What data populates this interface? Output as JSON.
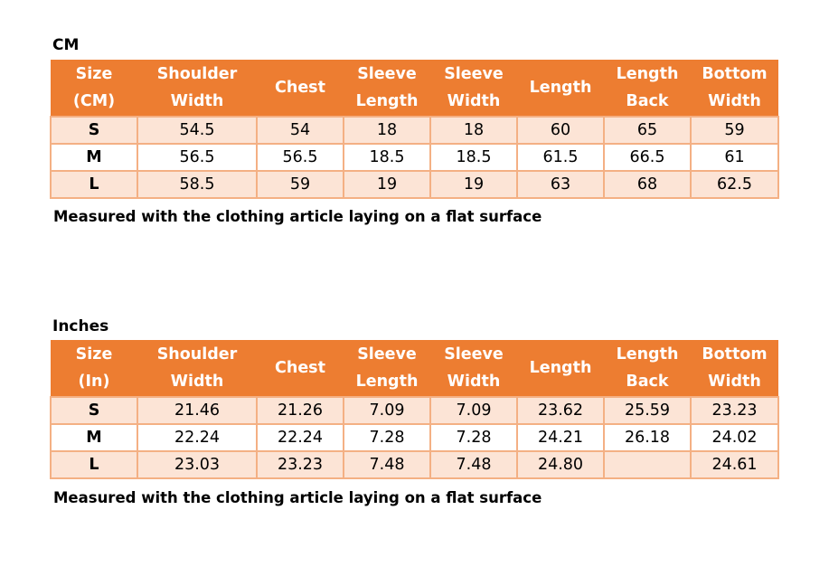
{
  "colors": {
    "header": "#ED7D31",
    "band": "#FCE4D6",
    "border": "#F4B084"
  },
  "tables": [
    {
      "title": "CM",
      "headers": [
        [
          "Size",
          "(CM)"
        ],
        [
          "Shoulder",
          "Width"
        ],
        [
          "Chest"
        ],
        [
          "Sleeve",
          "Length"
        ],
        [
          "Sleeve",
          "Width"
        ],
        [
          "Length"
        ],
        [
          "Length",
          "Back"
        ],
        [
          "Bottom",
          "Width"
        ]
      ],
      "rows": [
        [
          "S",
          "54.5",
          "54",
          "18",
          "18",
          "60",
          "65",
          "59"
        ],
        [
          "M",
          "56.5",
          "56.5",
          "18.5",
          "18.5",
          "61.5",
          "66.5",
          "61"
        ],
        [
          "L",
          "58.5",
          "59",
          "19",
          "19",
          "63",
          "68",
          "62.5"
        ]
      ],
      "note": "Measured with the clothing article laying on a flat surface"
    },
    {
      "title": "Inches",
      "headers": [
        [
          "Size",
          "(In)"
        ],
        [
          "Shoulder",
          "Width"
        ],
        [
          "Chest"
        ],
        [
          "Sleeve",
          "Length"
        ],
        [
          "Sleeve",
          "Width"
        ],
        [
          "Length"
        ],
        [
          "Length",
          "Back"
        ],
        [
          "Bottom",
          "Width"
        ]
      ],
      "rows": [
        [
          "S",
          "21.46",
          "21.26",
          "7.09",
          "7.09",
          "23.62",
          "25.59",
          "23.23"
        ],
        [
          "M",
          "22.24",
          "22.24",
          "7.28",
          "7.28",
          "24.21",
          "26.18",
          "24.02"
        ],
        [
          "L",
          "23.03",
          "23.23",
          "7.48",
          "7.48",
          "24.80",
          "",
          "24.61"
        ]
      ],
      "note": "Measured with the clothing article laying on a flat surface"
    }
  ]
}
